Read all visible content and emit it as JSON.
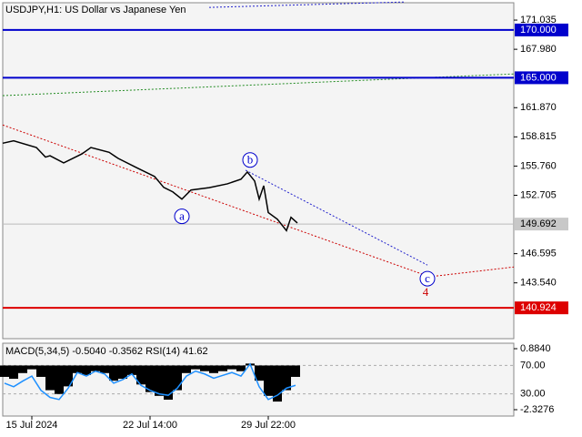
{
  "chart_data": [
    {
      "type": "price",
      "title": "USDJPY,H1: US Dollar vs Japanese Yen",
      "xlim": [
        -32,
        530
      ],
      "ylim": [
        137.7,
        172.85
      ],
      "yticks": [
        171.035,
        {
          "value": 167.98,
          "label": "167.980"
        },
        {
          "value": 161.87,
          "label": "161.870"
        },
        158.815,
        {
          "value": 155.76,
          "label": "155.760"
        },
        152.705,
        146.595,
        {
          "value": 143.54,
          "label": "143.540"
        }
      ],
      "color": "#000000",
      "x": [
        -32,
        -20,
        5,
        15,
        20,
        35,
        55,
        65,
        85,
        95,
        115,
        135,
        145,
        155,
        165,
        175,
        195,
        215,
        230,
        237,
        245,
        250,
        255,
        260,
        270,
        280,
        285,
        292
      ],
      "values": [
        158.15,
        158.4,
        157.7,
        156.7,
        156.84,
        156.09,
        157.03,
        157.7,
        157.2,
        156.56,
        155.6,
        154.67,
        153.53,
        153.06,
        152.3,
        153.25,
        153.5,
        153.9,
        154.38,
        155.14,
        154.2,
        152.3,
        153.7,
        150.9,
        150.2,
        149.0,
        150.4,
        149.8
      ],
      "current_price": {
        "value": 149.692,
        "label": "149.692"
      },
      "levels": [
        {
          "value": 170,
          "label": "170.000",
          "color": "#0000cc"
        },
        {
          "value": 165,
          "label": "165.000",
          "color": "#0000cc"
        },
        {
          "value": 140.924,
          "label": "140.924",
          "color": "#dd0000"
        }
      ],
      "trendlines": [
        {
          "color": "#cc0000",
          "x": [
            -32,
            435
          ],
          "y": [
            160.06,
            144.26
          ]
        },
        {
          "color": "#2222cc",
          "x": [
            235,
            435
          ],
          "y": [
            155.33,
            145.4
          ]
        },
        {
          "color": "#cc0000",
          "x": [
            445,
            530
          ],
          "y": [
            144.26,
            145.2
          ]
        },
        {
          "color": "#228b22",
          "x": [
            -32,
            530
          ],
          "y": [
            163.13,
            165.4
          ]
        },
        {
          "color": "#2222cc",
          "x": [
            195,
            410
          ],
          "y": [
            172.36,
            172.93
          ]
        }
      ],
      "annotations": [
        {
          "text": "a",
          "x": 165,
          "y": 150.5,
          "color": "#0000cc",
          "circle": true
        },
        {
          "text": "b",
          "x": 240,
          "y": 156.4,
          "color": "#0000cc",
          "circle": true
        },
        {
          "text": "c",
          "x": 435,
          "y": 143.98,
          "color": "#0000cc",
          "circle": true
        },
        {
          "text": "4",
          "x": 433,
          "y": 142.56,
          "color": "#cc0000",
          "circle": false
        }
      ]
    },
    {
      "type": "indicator",
      "title": "MACD(5,34,5) -0.5040 -0.3562 RSI(14) 41.62",
      "xlim": [
        -32,
        530
      ],
      "xticks": [
        {
          "value": 0,
          "label": "15 Jul 2024"
        },
        {
          "value": 130,
          "label": "22 Jul 14:00"
        },
        {
          "value": 260,
          "label": "29 Jul 22:00"
        }
      ],
      "ylim": [
        0,
        100
      ],
      "yticks": [
        {
          "value": 70,
          "label": "70.00"
        },
        {
          "value": 30,
          "label": "30.00"
        }
      ],
      "y2lim": [
        -2.615,
        1.124
      ],
      "y2ticks": [
        {
          "value": 0.884,
          "label": "0.8840"
        },
        -2.3276
      ],
      "x": [
        -30,
        -20,
        -10,
        0,
        10,
        20,
        30,
        40,
        50,
        60,
        70,
        80,
        90,
        100,
        110,
        120,
        130,
        140,
        150,
        160,
        170,
        180,
        190,
        200,
        210,
        220,
        230,
        240,
        250,
        260,
        270,
        280,
        290
      ],
      "series": [
        {
          "kind": "bar",
          "axis": "y2",
          "color": "#000000",
          "values": [
            -0.6,
            -0.7,
            -0.4,
            -0.2,
            -0.6,
            -1.3,
            -1.5,
            -1.1,
            -0.4,
            -0.5,
            -0.3,
            -0.4,
            -0.8,
            -0.7,
            -0.5,
            -1.0,
            -1.4,
            -1.6,
            -1.8,
            -1.3,
            -0.4,
            -0.2,
            -0.3,
            -0.4,
            -0.3,
            -0.2,
            -0.3,
            0.1,
            -0.8,
            -1.6,
            -1.9,
            -1.3,
            -0.6
          ]
        },
        {
          "kind": "line",
          "color": "#1e90ff",
          "values": [
            45,
            40,
            48,
            55,
            35,
            25,
            22,
            38,
            60,
            55,
            62,
            58,
            45,
            50,
            58,
            42,
            35,
            30,
            28,
            38,
            55,
            62,
            58,
            52,
            56,
            60,
            55,
            72,
            40,
            22,
            28,
            38,
            42
          ]
        }
      ]
    }
  ]
}
